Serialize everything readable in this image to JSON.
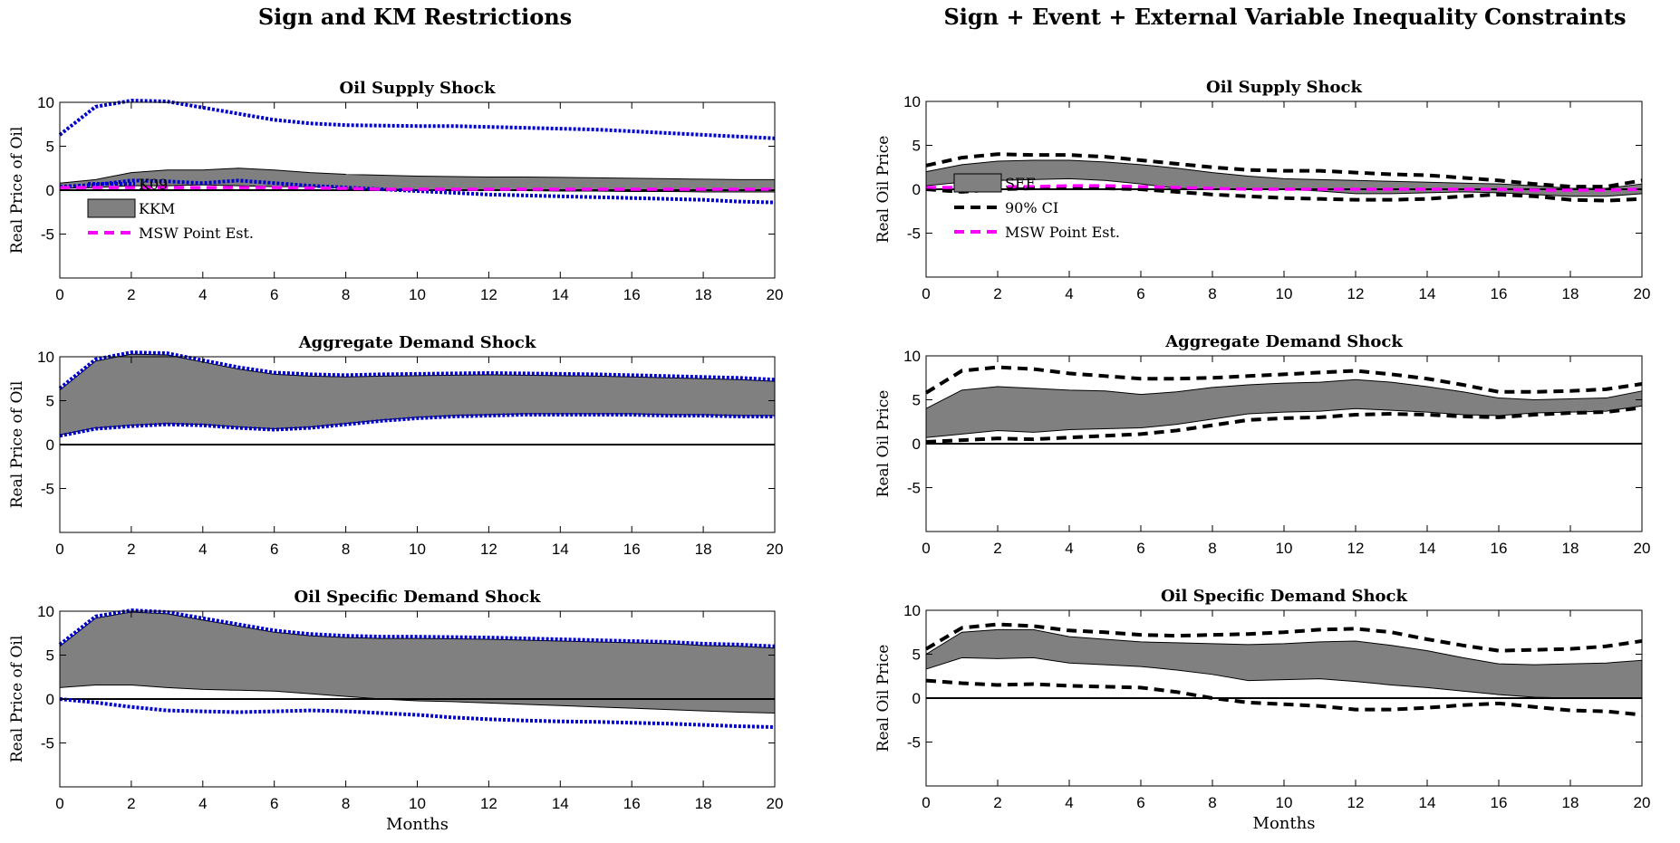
{
  "column_titles": [
    "Sign and KM Restrictions",
    "Sign + Event + External Variable Inequality Constraints"
  ],
  "colors": {
    "band": "#808080",
    "k09": "#0000cc",
    "msw": "#ff00ff",
    "ci": "#000000",
    "zero_line": "#000000"
  },
  "chart_data": [
    {
      "type": "area",
      "title": "Oil Supply Shock",
      "xlabel": "",
      "ylabel": "Real Price of Oil",
      "xlim": [
        0,
        20
      ],
      "ylim": [
        -10,
        10
      ],
      "xticks": [
        0,
        2,
        4,
        6,
        8,
        10,
        12,
        14,
        16,
        18,
        20
      ],
      "yticks": [
        10,
        5,
        0,
        -5
      ],
      "x": [
        0,
        1,
        2,
        3,
        4,
        5,
        6,
        7,
        8,
        9,
        10,
        11,
        12,
        13,
        14,
        15,
        16,
        17,
        18,
        19,
        20
      ],
      "band": {
        "name": "KKM",
        "upper": [
          0.8,
          1.2,
          2.0,
          2.3,
          2.3,
          2.5,
          2.3,
          2.0,
          1.8,
          1.7,
          1.6,
          1.55,
          1.5,
          1.5,
          1.45,
          1.4,
          1.35,
          1.3,
          1.25,
          1.2,
          1.2
        ],
        "lower": [
          0.2,
          0.3,
          0.5,
          0.5,
          0.6,
          0.5,
          0.4,
          0.4,
          0.2,
          0.1,
          0.05,
          0.0,
          0.0,
          -0.05,
          -0.1,
          -0.1,
          -0.15,
          -0.15,
          -0.2,
          -0.2,
          -0.2
        ]
      },
      "series": [
        {
          "name": "K09",
          "style": "dotted",
          "color": "#0000cc",
          "values": [
            6.3,
            9.5,
            10.2,
            10.1,
            9.4,
            8.7,
            8.0,
            7.6,
            7.4,
            7.35,
            7.3,
            7.3,
            7.2,
            7.1,
            7.0,
            6.9,
            6.7,
            6.5,
            6.3,
            6.1,
            5.9
          ]
        },
        {
          "style": "dotted",
          "color": "#0000cc",
          "values": [
            0.4,
            0.6,
            1.1,
            1.0,
            0.8,
            1.1,
            0.8,
            0.5,
            0.3,
            0.1,
            -0.1,
            -0.3,
            -0.5,
            -0.6,
            -0.7,
            -0.8,
            -0.9,
            -1.0,
            -1.1,
            -1.3,
            -1.4
          ]
        },
        {
          "name": "MSW Point Est.",
          "style": "dashed",
          "color": "#ff00ff",
          "values": [
            0.3,
            0.3,
            0.3,
            0.3,
            0.3,
            0.3,
            0.3,
            0.25,
            0.2,
            0.1,
            0.1,
            0.1,
            0.1,
            0.1,
            0.1,
            0.1,
            0.1,
            0.1,
            0.1,
            0.1,
            0.1
          ]
        }
      ],
      "legend": {
        "placement": "bottom-left",
        "entries": [
          "K09",
          "KKM",
          "MSW Point Est."
        ]
      }
    },
    {
      "type": "area",
      "title": "Aggregate Demand Shock",
      "xlabel": "",
      "ylabel": "Real Price of Oil",
      "xlim": [
        0,
        20
      ],
      "ylim": [
        -10,
        10
      ],
      "xticks": [
        0,
        2,
        4,
        6,
        8,
        10,
        12,
        14,
        16,
        18,
        20
      ],
      "yticks": [
        10,
        5,
        0,
        -5
      ],
      "x": [
        0,
        1,
        2,
        3,
        4,
        5,
        6,
        7,
        8,
        9,
        10,
        11,
        12,
        13,
        14,
        15,
        16,
        17,
        18,
        19,
        20
      ],
      "band": {
        "upper": [
          6.2,
          9.5,
          10.3,
          10.2,
          9.4,
          8.6,
          8.0,
          7.8,
          7.7,
          7.8,
          7.85,
          7.9,
          7.95,
          7.9,
          7.85,
          7.8,
          7.7,
          7.6,
          7.5,
          7.4,
          7.2
        ],
        "lower": [
          1.1,
          1.9,
          2.2,
          2.4,
          2.3,
          2.0,
          1.8,
          2.0,
          2.4,
          2.8,
          3.1,
          3.3,
          3.4,
          3.5,
          3.5,
          3.5,
          3.5,
          3.4,
          3.4,
          3.3,
          3.3
        ]
      },
      "series": [
        {
          "style": "dotted",
          "color": "#0000cc",
          "values": [
            6.4,
            9.7,
            10.5,
            10.4,
            9.6,
            8.8,
            8.2,
            8.0,
            7.9,
            8.0,
            8.05,
            8.1,
            8.15,
            8.1,
            8.05,
            8.0,
            7.9,
            7.8,
            7.7,
            7.6,
            7.4
          ]
        },
        {
          "style": "dotted",
          "color": "#0000cc",
          "values": [
            1.0,
            1.8,
            2.1,
            2.3,
            2.2,
            1.9,
            1.7,
            1.9,
            2.3,
            2.7,
            3.0,
            3.2,
            3.3,
            3.4,
            3.4,
            3.4,
            3.4,
            3.3,
            3.3,
            3.2,
            3.2
          ]
        }
      ]
    },
    {
      "type": "area",
      "title": "Oil Specific Demand Shock",
      "xlabel": "Months",
      "ylabel": "Real Price of Oil",
      "xlim": [
        0,
        20
      ],
      "ylim": [
        -10,
        10
      ],
      "xticks": [
        0,
        2,
        4,
        6,
        8,
        10,
        12,
        14,
        16,
        18,
        20
      ],
      "yticks": [
        10,
        5,
        0,
        -5
      ],
      "x": [
        0,
        1,
        2,
        3,
        4,
        5,
        6,
        7,
        8,
        9,
        10,
        11,
        12,
        13,
        14,
        15,
        16,
        17,
        18,
        19,
        20
      ],
      "band": {
        "upper": [
          6.0,
          9.2,
          9.9,
          9.7,
          9.0,
          8.3,
          7.6,
          7.2,
          7.0,
          6.9,
          6.9,
          6.85,
          6.8,
          6.7,
          6.6,
          6.5,
          6.4,
          6.3,
          6.1,
          6.0,
          5.8
        ],
        "lower": [
          1.3,
          1.6,
          1.6,
          1.3,
          1.1,
          1.0,
          0.9,
          0.6,
          0.3,
          0.0,
          -0.2,
          -0.3,
          -0.45,
          -0.6,
          -0.75,
          -0.9,
          -1.05,
          -1.2,
          -1.35,
          -1.5,
          -1.6
        ]
      },
      "series": [
        {
          "style": "dotted",
          "color": "#0000cc",
          "values": [
            6.2,
            9.4,
            10.1,
            9.9,
            9.2,
            8.5,
            7.8,
            7.4,
            7.2,
            7.1,
            7.1,
            7.05,
            7.0,
            6.9,
            6.8,
            6.7,
            6.6,
            6.5,
            6.3,
            6.2,
            6.0
          ]
        },
        {
          "style": "dotted",
          "color": "#0000cc",
          "values": [
            0.0,
            -0.4,
            -0.9,
            -1.3,
            -1.4,
            -1.5,
            -1.4,
            -1.3,
            -1.4,
            -1.6,
            -1.8,
            -2.1,
            -2.3,
            -2.45,
            -2.55,
            -2.6,
            -2.7,
            -2.8,
            -2.95,
            -3.1,
            -3.2
          ]
        }
      ]
    },
    {
      "type": "area",
      "title": "Oil Supply Shock",
      "xlabel": "",
      "ylabel": "Real Oil Price",
      "xlim": [
        0,
        20
      ],
      "ylim": [
        -10,
        10
      ],
      "xticks": [
        0,
        2,
        4,
        6,
        8,
        10,
        12,
        14,
        16,
        18,
        20
      ],
      "yticks": [
        10,
        5,
        0,
        -5
      ],
      "x": [
        0,
        1,
        2,
        3,
        4,
        5,
        6,
        7,
        8,
        9,
        10,
        11,
        12,
        13,
        14,
        15,
        16,
        17,
        18,
        19,
        20
      ],
      "band": {
        "name": "SEE",
        "upper": [
          2.0,
          2.8,
          3.2,
          3.3,
          3.3,
          3.1,
          2.8,
          2.4,
          1.9,
          1.5,
          1.2,
          1.1,
          1.0,
          0.9,
          0.8,
          0.7,
          0.6,
          0.4,
          0.1,
          0.1,
          0.6
        ],
        "lower": [
          0.4,
          0.8,
          1.0,
          1.1,
          1.2,
          1.0,
          0.6,
          0.1,
          0.0,
          0.0,
          0.0,
          -0.2,
          -0.5,
          -0.5,
          -0.4,
          -0.3,
          -0.4,
          -0.6,
          -0.8,
          -0.8,
          -0.5
        ]
      },
      "series": [
        {
          "name": "90% CI",
          "style": "dashed",
          "color": "#000000",
          "values": [
            2.7,
            3.6,
            4.0,
            3.9,
            3.9,
            3.7,
            3.3,
            2.9,
            2.5,
            2.2,
            2.1,
            2.1,
            1.9,
            1.7,
            1.6,
            1.3,
            1.0,
            0.6,
            0.3,
            0.3,
            1.0
          ]
        },
        {
          "style": "dashed",
          "color": "#000000",
          "values": [
            0.0,
            -0.3,
            0.0,
            0.1,
            0.2,
            0.1,
            0.0,
            -0.3,
            -0.6,
            -0.8,
            -1.0,
            -1.1,
            -1.2,
            -1.2,
            -1.1,
            -0.8,
            -0.6,
            -0.8,
            -1.2,
            -1.3,
            -1.1
          ]
        },
        {
          "name": "MSW Point Est.",
          "style": "dashed",
          "color": "#ff00ff",
          "values": [
            0.2,
            0.2,
            0.3,
            0.3,
            0.4,
            0.4,
            0.3,
            0.2,
            0.1,
            0.0,
            0.0,
            0.0,
            0.0,
            0.0,
            0.0,
            0.0,
            0.0,
            -0.1,
            -0.1,
            -0.1,
            0.0
          ]
        }
      ],
      "legend": {
        "placement": "bottom-left",
        "entries": [
          "SEE",
          "90% CI",
          "MSW Point Est."
        ]
      }
    },
    {
      "type": "area",
      "title": "Aggregate Demand Shock",
      "xlabel": "",
      "ylabel": "Real Oil Price",
      "xlim": [
        0,
        20
      ],
      "ylim": [
        -10,
        10
      ],
      "xticks": [
        0,
        2,
        4,
        6,
        8,
        10,
        12,
        14,
        16,
        18,
        20
      ],
      "yticks": [
        10,
        5,
        0,
        -5
      ],
      "x": [
        0,
        1,
        2,
        3,
        4,
        5,
        6,
        7,
        8,
        9,
        10,
        11,
        12,
        13,
        14,
        15,
        16,
        17,
        18,
        19,
        20
      ],
      "band": {
        "upper": [
          4.0,
          6.1,
          6.5,
          6.3,
          6.1,
          6.0,
          5.6,
          5.9,
          6.4,
          6.7,
          6.9,
          7.0,
          7.3,
          7.0,
          6.5,
          5.9,
          5.2,
          5.0,
          5.1,
          5.2,
          6.0
        ],
        "lower": [
          0.7,
          1.1,
          1.5,
          1.3,
          1.6,
          1.7,
          1.8,
          2.2,
          2.8,
          3.4,
          3.6,
          3.7,
          4.0,
          3.8,
          3.6,
          3.3,
          3.2,
          3.5,
          3.6,
          3.7,
          4.3
        ]
      },
      "series": [
        {
          "style": "dashed",
          "color": "#000000",
          "values": [
            5.8,
            8.3,
            8.7,
            8.5,
            8.0,
            7.7,
            7.4,
            7.4,
            7.5,
            7.7,
            7.9,
            8.1,
            8.3,
            7.9,
            7.4,
            6.7,
            5.9,
            5.9,
            6.0,
            6.2,
            6.8
          ]
        },
        {
          "style": "dashed",
          "color": "#000000",
          "values": [
            0.2,
            0.4,
            0.6,
            0.5,
            0.7,
            0.9,
            1.1,
            1.5,
            2.1,
            2.7,
            2.9,
            3.0,
            3.3,
            3.4,
            3.3,
            3.1,
            3.0,
            3.3,
            3.5,
            3.6,
            4.1
          ]
        }
      ]
    },
    {
      "type": "area",
      "title": "Oil Specific Demand Shock",
      "xlabel": "Months",
      "ylabel": "Real Oil Price",
      "xlim": [
        0,
        20
      ],
      "ylim": [
        -10,
        10
      ],
      "xticks": [
        0,
        2,
        4,
        6,
        8,
        10,
        12,
        14,
        16,
        18,
        20
      ],
      "yticks": [
        10,
        5,
        0,
        -5
      ],
      "x": [
        0,
        1,
        2,
        3,
        4,
        5,
        6,
        7,
        8,
        9,
        10,
        11,
        12,
        13,
        14,
        15,
        16,
        17,
        18,
        19,
        20
      ],
      "band": {
        "upper": [
          5.0,
          7.5,
          7.8,
          7.8,
          7.0,
          6.7,
          6.4,
          6.3,
          6.2,
          6.1,
          6.2,
          6.4,
          6.5,
          6.0,
          5.4,
          4.6,
          3.9,
          3.8,
          3.9,
          4.0,
          4.3
        ],
        "lower": [
          3.3,
          4.6,
          4.5,
          4.6,
          4.0,
          3.8,
          3.6,
          3.2,
          2.7,
          2.0,
          2.1,
          2.2,
          1.9,
          1.5,
          1.2,
          0.8,
          0.4,
          0.1,
          0.0,
          0.0,
          0.0
        ]
      },
      "series": [
        {
          "style": "dashed",
          "color": "#000000",
          "values": [
            5.6,
            8.0,
            8.4,
            8.2,
            7.7,
            7.5,
            7.2,
            7.1,
            7.2,
            7.3,
            7.5,
            7.8,
            7.9,
            7.5,
            6.7,
            6.0,
            5.4,
            5.5,
            5.6,
            5.9,
            6.5
          ]
        },
        {
          "style": "dashed",
          "color": "#000000",
          "values": [
            2.0,
            1.7,
            1.5,
            1.6,
            1.4,
            1.3,
            1.2,
            0.7,
            0.0,
            -0.5,
            -0.7,
            -0.9,
            -1.3,
            -1.3,
            -1.1,
            -0.8,
            -0.6,
            -1.0,
            -1.4,
            -1.5,
            -1.9
          ]
        }
      ]
    }
  ]
}
